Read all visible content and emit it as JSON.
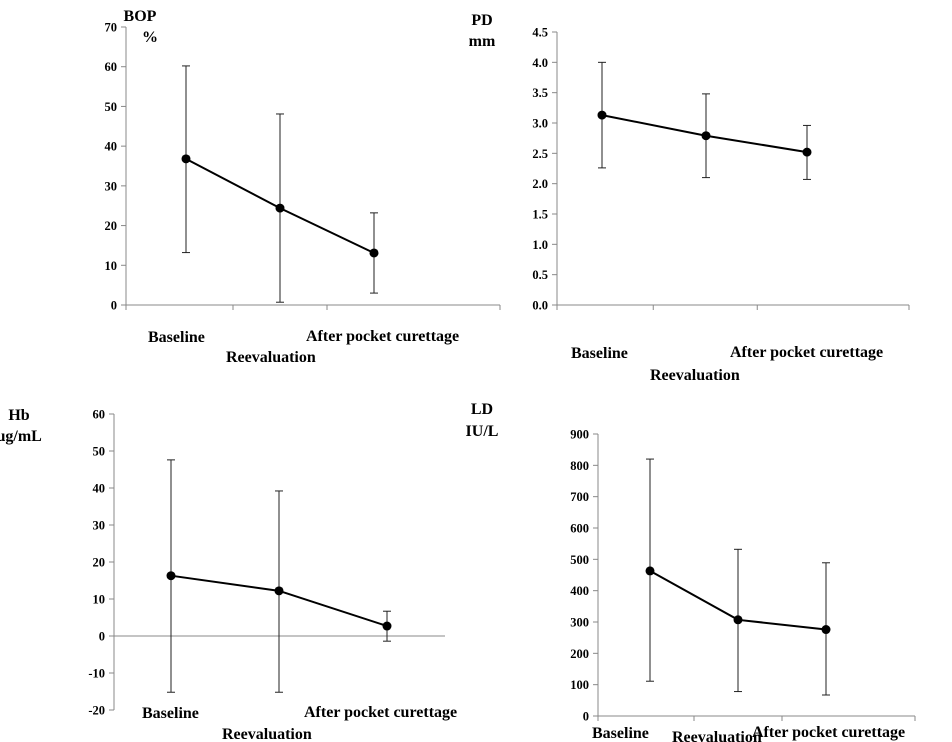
{
  "chart_data": [
    {
      "type": "line",
      "ylabel": [
        "BOP",
        "%"
      ],
      "categories": [
        "Baseline",
        "Reevaluation",
        "After pocket curettage"
      ],
      "values": [
        36.8,
        24.4,
        13.1
      ],
      "error_low": [
        13.2,
        0.7,
        3.0
      ],
      "error_high": [
        60.2,
        48.1,
        23.2
      ],
      "ylim": [
        0,
        70
      ],
      "yticks": [
        "0",
        "10",
        "20",
        "30",
        "40",
        "50",
        "60",
        "70"
      ]
    },
    {
      "type": "line",
      "ylabel": [
        "PD",
        "mm"
      ],
      "categories": [
        "Baseline",
        "Reevaluation",
        "After pocket curettage"
      ],
      "values": [
        3.13,
        2.79,
        2.52
      ],
      "error_low": [
        2.26,
        2.1,
        2.07
      ],
      "error_high": [
        4.0,
        3.48,
        2.96
      ],
      "ylim": [
        0,
        4.5
      ],
      "yticks": [
        "0.0",
        "0.5",
        "1.0",
        "1.5",
        "2.0",
        "2.5",
        "3.0",
        "3.5",
        "4.0",
        "4.5"
      ]
    },
    {
      "type": "line",
      "ylabel": [
        "Hb",
        "µg/mL"
      ],
      "categories": [
        "Baseline",
        "Reevaluation",
        "After pocket curettage"
      ],
      "values": [
        16.3,
        12.2,
        2.7
      ],
      "error_low": [
        -15.2,
        -15.2,
        -1.4
      ],
      "error_high": [
        47.6,
        39.2,
        6.7
      ],
      "ylim": [
        -20,
        60
      ],
      "yticks": [
        "-20",
        "-10",
        "0",
        "10",
        "20",
        "30",
        "40",
        "50",
        "60"
      ]
    },
    {
      "type": "line",
      "ylabel": [
        "LD",
        "IU/L"
      ],
      "categories": [
        "Baseline",
        "Reevaluation",
        "After pocket curettage"
      ],
      "values": [
        463,
        307,
        276
      ],
      "error_low": [
        111,
        78,
        67
      ],
      "error_high": [
        820,
        532,
        489
      ],
      "ylim": [
        0,
        900
      ],
      "yticks": [
        "0",
        "100",
        "200",
        "300",
        "400",
        "500",
        "600",
        "700",
        "800",
        "900"
      ]
    }
  ]
}
